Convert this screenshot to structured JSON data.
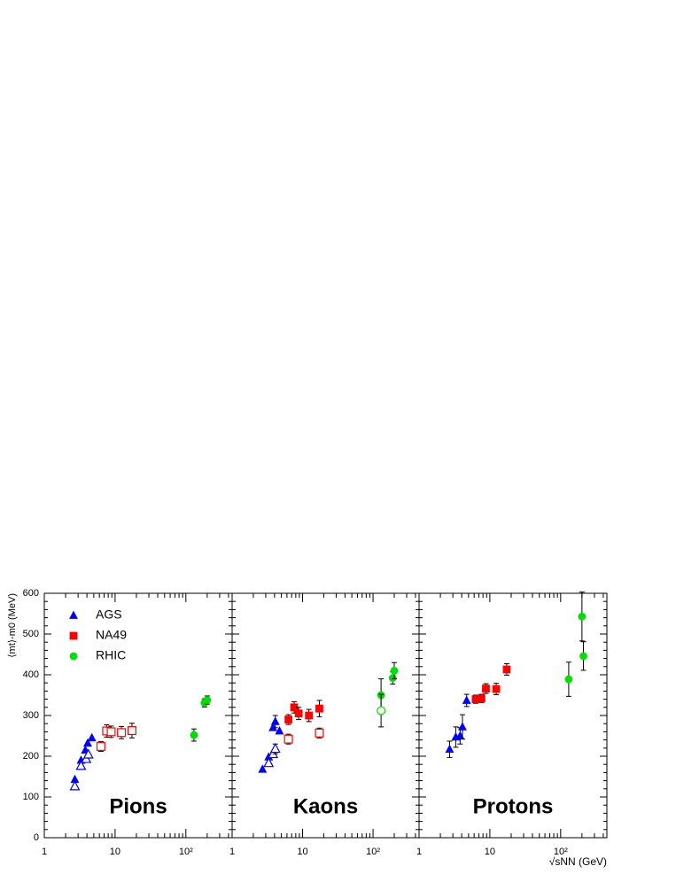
{
  "chart_data": [
    {
      "type": "scatter",
      "title": "Pions",
      "ylabel": "⟨mt⟩-m0 (MeV)",
      "show_ytick_labels": true,
      "log_x": true,
      "xlim": [
        1,
        450
      ],
      "xticks": [
        1,
        10,
        {
          "value": 100,
          "label": "10²"
        }
      ],
      "ylim": [
        0,
        600
      ],
      "yticks": [
        0,
        100,
        200,
        300,
        400,
        500,
        600
      ],
      "legend": "top-left",
      "series": [
        {
          "name": "AGS",
          "color": "#0000ff",
          "marker": "triangle",
          "filled": true,
          "x": [
            2.7,
            3.3,
            3.8,
            4.1,
            4.7
          ],
          "values": [
            143,
            190,
            215,
            232,
            245
          ],
          "errors": [
            null,
            null,
            null,
            null,
            null
          ]
        },
        {
          "color": "#0000ff",
          "marker": "triangle",
          "filled": false,
          "x": [
            2.7,
            3.3,
            3.9,
            4.2
          ],
          "values": [
            126,
            176,
            193,
            204
          ],
          "errors": [
            null,
            null,
            null,
            null
          ]
        },
        {
          "name": "NA49",
          "color": "#ff0000",
          "marker": "square",
          "filled": true,
          "x": [],
          "values": [],
          "errors": []
        },
        {
          "color": "#ff0000",
          "marker": "square",
          "filled": false,
          "x": [
            6.3,
            7.6,
            8.8,
            12.3,
            17.3
          ],
          "values": [
            224,
            262,
            260,
            258,
            263
          ],
          "errors": [
            12,
            15,
            14,
            15,
            18
          ]
        },
        {
          "name": "RHIC",
          "color": "#00e000",
          "marker": "circle",
          "filled": true,
          "x": [
            130,
            183,
            200
          ],
          "values": [
            252,
            331,
            338
          ],
          "errors": [
            15,
            10,
            10
          ]
        }
      ]
    },
    {
      "type": "scatter",
      "title": "Kaons",
      "show_ytick_labels": false,
      "log_x": true,
      "xlim": [
        1,
        450
      ],
      "xticks": [
        1,
        10,
        {
          "value": 100,
          "label": "10²"
        }
      ],
      "ylim": [
        0,
        600
      ],
      "yticks": [
        0,
        100,
        200,
        300,
        400,
        500,
        600
      ],
      "series": [
        {
          "color": "#0000ff",
          "marker": "triangle",
          "filled": true,
          "x": [
            2.7,
            3.3,
            3.8,
            4.1,
            4.7
          ],
          "values": [
            168,
            198,
            270,
            285,
            262
          ],
          "errors": [
            null,
            null,
            null,
            15,
            null
          ]
        },
        {
          "color": "#0000ff",
          "marker": "triangle",
          "filled": false,
          "x": [
            3.3,
            3.8,
            4.1
          ],
          "values": [
            183,
            205,
            218
          ],
          "errors": [
            null,
            null,
            12
          ]
        },
        {
          "color": "#ff0000",
          "marker": "square",
          "filled": true,
          "x": [
            6.3,
            7.6,
            8.8,
            12.3,
            17.3
          ],
          "values": [
            290,
            320,
            305,
            300,
            317
          ],
          "errors": [
            12,
            14,
            15,
            15,
            20
          ]
        },
        {
          "color": "#ff0000",
          "marker": "square",
          "filled": false,
          "x": [
            6.3,
            17.3
          ],
          "values": [
            242,
            257
          ],
          "errors": [
            12,
            12
          ]
        },
        {
          "color": "#00e000",
          "marker": "circle",
          "filled": true,
          "x": [
            130,
            190,
            200
          ],
          "values": [
            350,
            392,
            410
          ],
          "errors": [
            40,
            15,
            20
          ]
        },
        {
          "color": "#00e000",
          "marker": "circle",
          "filled": false,
          "x": [
            130
          ],
          "values": [
            312
          ],
          "errors": [
            40
          ]
        }
      ]
    },
    {
      "type": "scatter",
      "title": "Protons",
      "xlabel": "√sNN (GeV)",
      "show_ytick_labels": false,
      "log_x": true,
      "xlim": [
        1,
        450
      ],
      "xticks": [
        1,
        10,
        {
          "value": 100,
          "label": "10²"
        }
      ],
      "ylim": [
        0,
        600
      ],
      "yticks": [
        0,
        100,
        200,
        300,
        400,
        500,
        600
      ],
      "series": [
        {
          "color": "#0000ff",
          "marker": "triangle",
          "filled": true,
          "x": [
            2.7,
            3.3,
            3.8,
            4.1,
            4.7
          ],
          "values": [
            217,
            247,
            250,
            272,
            337
          ],
          "errors": [
            20,
            25,
            20,
            30,
            15
          ]
        },
        {
          "color": "#ff0000",
          "marker": "square",
          "filled": true,
          "x": [
            6.3,
            7.6,
            8.8,
            12.3,
            17.3
          ],
          "values": [
            340,
            342,
            366,
            365,
            413
          ],
          "errors": [
            10,
            10,
            12,
            14,
            14
          ]
        },
        {
          "color": "#00e000",
          "marker": "circle",
          "filled": true,
          "x": [
            130,
            200,
            210
          ],
          "values": [
            389,
            543,
            446
          ],
          "errors": [
            42,
            60,
            35
          ]
        }
      ]
    }
  ]
}
